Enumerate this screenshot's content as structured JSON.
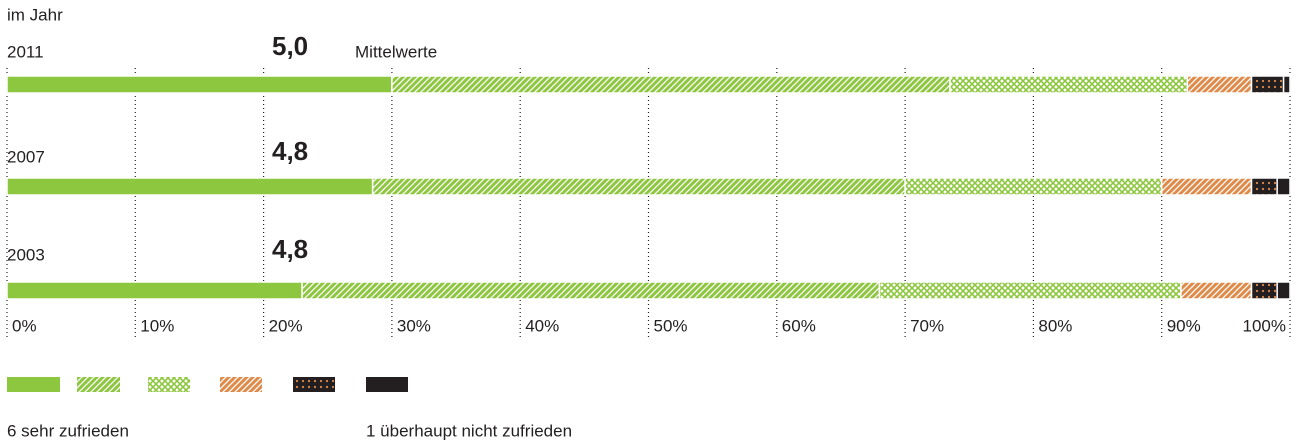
{
  "chart_data": {
    "type": "stacked-bar-horizontal",
    "y_label": "im Jahr",
    "categories": [
      "2011",
      "2007",
      "2003"
    ],
    "mean_title": "Mittelwerte",
    "means": [
      {
        "value": 5.0,
        "label": "5,0"
      },
      {
        "value": 4.8,
        "label": "4,8"
      },
      {
        "value": 4.8,
        "label": "4,8"
      }
    ],
    "series": [
      {
        "color": "#8dc63f",
        "pattern": "solid",
        "values": [
          30,
          28.5,
          23
        ]
      },
      {
        "color": "#8dc63f",
        "pattern": "diagonal",
        "values": [
          43.5,
          41.5,
          45
        ]
      },
      {
        "color": "#8dc63f",
        "pattern": "cross",
        "values": [
          18.5,
          20,
          23.5
        ]
      },
      {
        "color": "#e08a4a",
        "pattern": "diagonal",
        "values": [
          5,
          7,
          5.5
        ]
      },
      {
        "color": "#e08a4a",
        "pattern": "dots",
        "values": [
          2.5,
          2,
          2
        ]
      },
      {
        "color": "#231f20",
        "pattern": "solid",
        "values": [
          0.5,
          1,
          1
        ]
      }
    ],
    "xlim": [
      0,
      100
    ],
    "xticks": [
      {
        "value": 0,
        "label": "0%"
      },
      {
        "value": 10,
        "label": "10%"
      },
      {
        "value": 20,
        "label": "20%"
      },
      {
        "value": 30,
        "label": "30%"
      },
      {
        "value": 40,
        "label": "40%"
      },
      {
        "value": 50,
        "label": "50%"
      },
      {
        "value": 60,
        "label": "60%"
      },
      {
        "value": 70,
        "label": "70%"
      },
      {
        "value": 80,
        "label": "80%"
      },
      {
        "value": 90,
        "label": "90%"
      },
      {
        "value": 100,
        "label": "100%"
      }
    ],
    "grid": true,
    "legend_labels": [
      "6 sehr zufrieden",
      "1 überhaupt nicht zufrieden"
    ]
  }
}
